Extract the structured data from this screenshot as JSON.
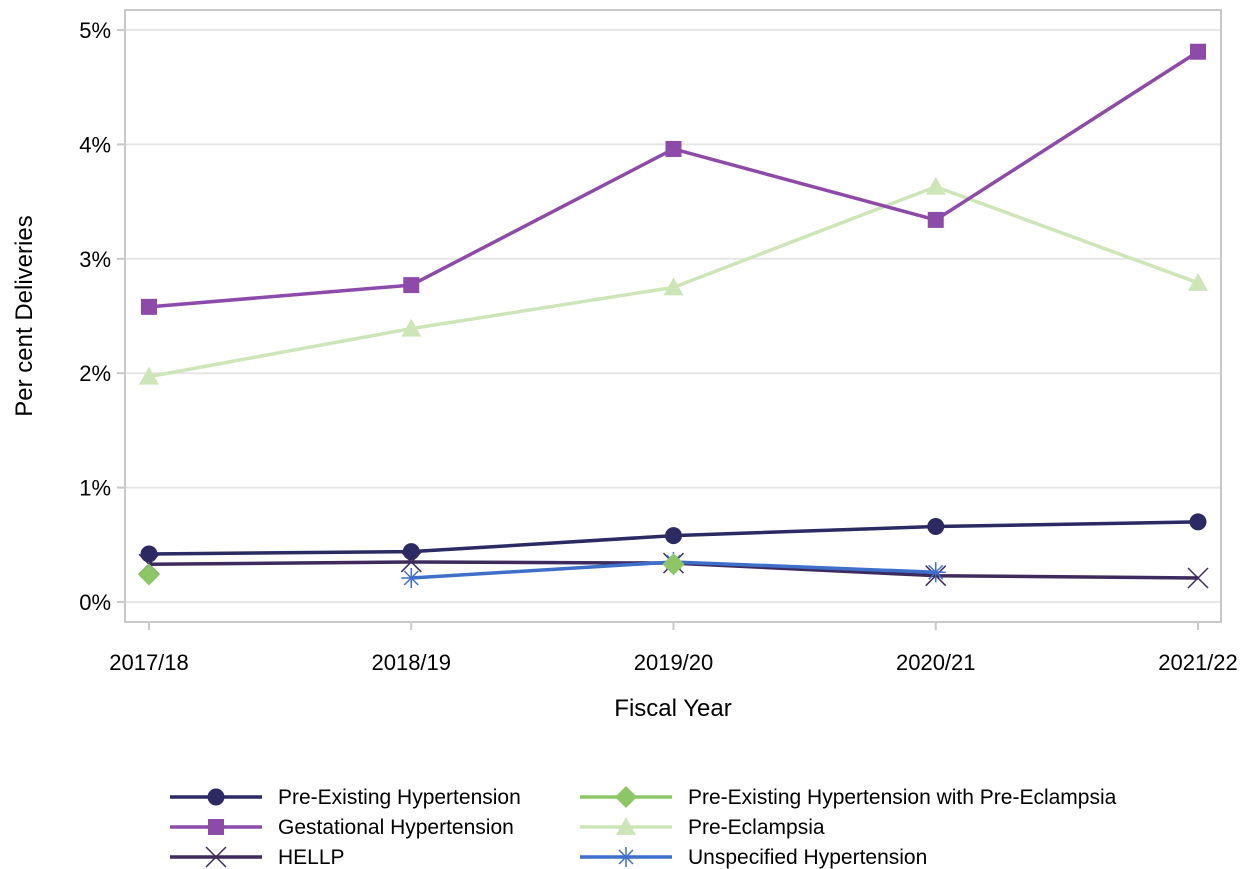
{
  "chart_data": {
    "type": "line",
    "xlabel": "Fiscal Year",
    "ylabel": "Per cent Deliveries",
    "categories": [
      "2017/18",
      "2018/19",
      "2019/20",
      "2020/21",
      "2021/22"
    ],
    "ylim": [
      0,
      5
    ],
    "yticks": [
      0,
      1,
      2,
      3,
      4,
      5
    ],
    "ytick_labels": [
      "0%",
      "1%",
      "2%",
      "3%",
      "4%",
      "5%"
    ],
    "grid": "horizontal",
    "legend_position": "bottom",
    "series": [
      {
        "name": "Pre-Existing Hypertension",
        "values": [
          0.42,
          0.44,
          0.58,
          0.66,
          0.7
        ],
        "color": "#2b2a63",
        "marker": "circle"
      },
      {
        "name": "Gestational Hypertension",
        "values": [
          2.58,
          2.77,
          3.96,
          3.34,
          4.81
        ],
        "color": "#8e4aa8",
        "marker": "square"
      },
      {
        "name": "HELLP",
        "values": [
          0.33,
          0.35,
          0.34,
          0.23,
          0.21
        ],
        "color": "#3d2b5e",
        "marker": "x"
      },
      {
        "name": "Pre-Existing Hypertension with Pre-Eclampsia",
        "values": [
          0.24,
          null,
          0.33,
          null,
          null
        ],
        "color": "#8cc665",
        "marker": "diamond"
      },
      {
        "name": "Pre-Eclampsia",
        "values": [
          1.97,
          2.39,
          2.75,
          3.63,
          2.79
        ],
        "color": "#cde6b8",
        "marker": "triangle"
      },
      {
        "name": "Unspecified Hypertension",
        "values": [
          null,
          0.21,
          0.35,
          0.26,
          null
        ],
        "color": "#3e6fc9",
        "marker": "asterisk"
      }
    ]
  }
}
